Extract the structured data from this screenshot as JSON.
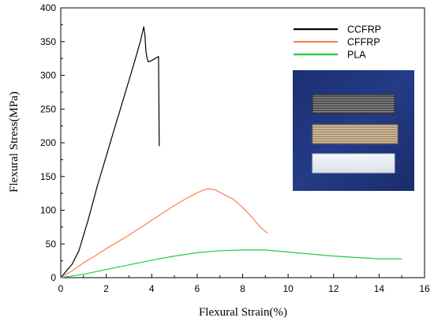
{
  "chart_data": {
    "type": "line",
    "xlabel": "Flexural Strain(%)",
    "ylabel": "Flexural Stress(MPa)",
    "xlim": [
      0,
      16
    ],
    "ylim": [
      0,
      400
    ],
    "x_ticks": [
      0,
      2,
      4,
      6,
      8,
      10,
      12,
      14,
      16
    ],
    "y_ticks": [
      0,
      50,
      100,
      150,
      200,
      250,
      300,
      350,
      400
    ],
    "grid": false,
    "legend_position": "top-right",
    "inset_photo": "three printed flexural specimens (CCFRP, CFFRP, PLA) on a blue background",
    "series": [
      {
        "name": "CCFRP",
        "color": "#000000",
        "points": [
          [
            0,
            0
          ],
          [
            0.5,
            20
          ],
          [
            0.8,
            40
          ],
          [
            1.2,
            85
          ],
          [
            1.6,
            135
          ],
          [
            2.0,
            180
          ],
          [
            2.4,
            225
          ],
          [
            2.8,
            270
          ],
          [
            3.2,
            315
          ],
          [
            3.5,
            350
          ],
          [
            3.65,
            372
          ],
          [
            3.7,
            360
          ],
          [
            3.75,
            335
          ],
          [
            3.8,
            325
          ],
          [
            3.85,
            320
          ],
          [
            4.0,
            322
          ],
          [
            4.3,
            328
          ],
          [
            4.33,
            195
          ]
        ]
      },
      {
        "name": "CFFRP",
        "color": "#ff7f4f",
        "points": [
          [
            0,
            0
          ],
          [
            0.5,
            10
          ],
          [
            1.0,
            22
          ],
          [
            1.5,
            32
          ],
          [
            2.0,
            43
          ],
          [
            2.5,
            53
          ],
          [
            3.0,
            63
          ],
          [
            3.5,
            74
          ],
          [
            4.0,
            85
          ],
          [
            4.5,
            96
          ],
          [
            5.0,
            107
          ],
          [
            5.5,
            117
          ],
          [
            6.0,
            126
          ],
          [
            6.3,
            130
          ],
          [
            6.5,
            132
          ],
          [
            6.8,
            130
          ],
          [
            7.2,
            123
          ],
          [
            7.6,
            116
          ],
          [
            8.0,
            104
          ],
          [
            8.4,
            90
          ],
          [
            8.8,
            74
          ],
          [
            9.1,
            66
          ]
        ]
      },
      {
        "name": "PLA",
        "color": "#22cc44",
        "points": [
          [
            0,
            0
          ],
          [
            1,
            5
          ],
          [
            2,
            12
          ],
          [
            3,
            19
          ],
          [
            4,
            26
          ],
          [
            5,
            32
          ],
          [
            6,
            37
          ],
          [
            7,
            40
          ],
          [
            8,
            41
          ],
          [
            9,
            41
          ],
          [
            10,
            38
          ],
          [
            11,
            35
          ],
          [
            12,
            32
          ],
          [
            13,
            30
          ],
          [
            14,
            28
          ],
          [
            15,
            28
          ]
        ]
      }
    ]
  }
}
